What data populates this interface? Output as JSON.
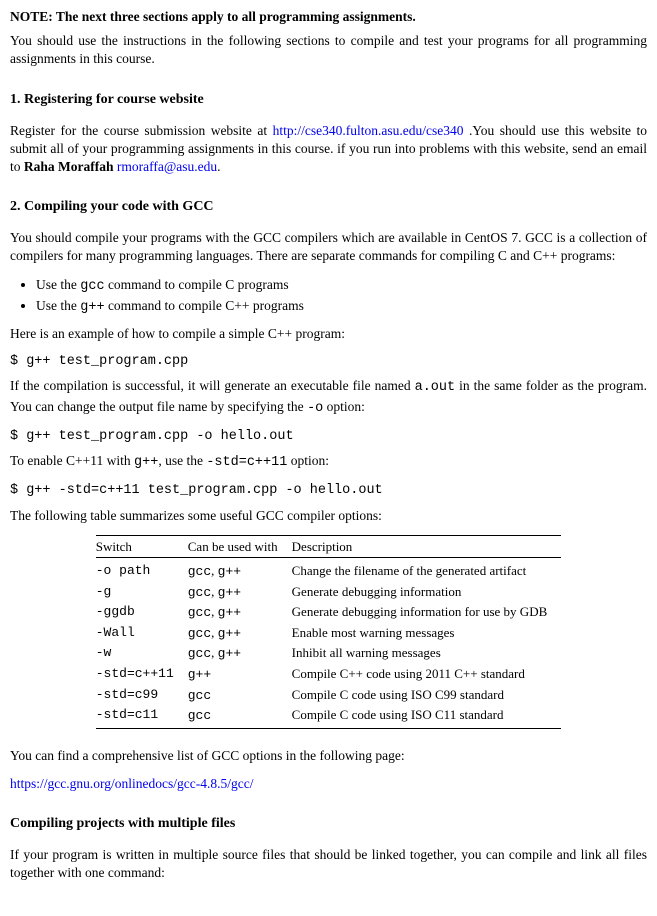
{
  "note": {
    "label": "NOTE: The next three sections apply to all programming assignments.",
    "text": "You should use the instructions in the following sections to compile and test your programs for all programming assignments in this course."
  },
  "section1": {
    "heading": "1.  Registering for course website",
    "p1_a": "Register for the course submission website at ",
    "p1_link1": "http://cse340.fulton.asu.edu/cse340",
    "p1_b": " .You should use this website to submit all of your programming assignments in this course. if you run into problems with this website, send an email to ",
    "p1_bold": "Raha Moraffah",
    "p1_c": " ",
    "p1_link2": "rmoraffa@asu.edu",
    "p1_d": "."
  },
  "section2": {
    "heading": "2.  Compiling your code with GCC",
    "p1": "You should compile your programs with the GCC compilers which are available in CentOS 7. GCC is a collection of compilers for many programming languages. There are separate commands for compiling C and C++ programs:",
    "li1_a": "Use the ",
    "li1_code": "gcc",
    "li1_b": " command to compile C programs",
    "li2_a": "Use the ",
    "li2_code": "g++",
    "li2_b": " command to compile C++ programs",
    "p2": "Here is an example of how to compile a simple C++ program:",
    "cmd1": "$ g++ test_program.cpp",
    "p3_a": "If the compilation is successful, it will generate an executable file named ",
    "p3_code1": "a.out",
    "p3_b": " in the same folder as the program. You can change the output file name by specifying the ",
    "p3_code2": "-o",
    "p3_c": " option:",
    "cmd2": "$ g++ test_program.cpp -o hello.out",
    "p4_a": "To enable C++11 with ",
    "p4_code1": "g++",
    "p4_b": ", use the ",
    "p4_code2": "-std=c++11",
    "p4_c": " option:",
    "cmd3": "$ g++ -std=c++11 test_program.cpp -o hello.out",
    "p5": "The following table summarizes some useful GCC compiler options:",
    "table": {
      "headers": [
        "Switch",
        "Can be used with",
        "Description"
      ],
      "rows": [
        [
          "-o path",
          "gcc, g++",
          "Change the filename of the generated artifact"
        ],
        [
          "-g",
          "gcc, g++",
          "Generate debugging information"
        ],
        [
          "-ggdb",
          "gcc, g++",
          "Generate debugging information for use by GDB"
        ],
        [
          "-Wall",
          "gcc, g++",
          "Enable most warning messages"
        ],
        [
          "-w",
          "gcc, g++",
          "Inhibit all warning messages"
        ],
        [
          "-std=c++11",
          "g++",
          "Compile C++ code using 2011 C++ standard"
        ],
        [
          "-std=c99",
          "gcc",
          "Compile C code using ISO C99 standard"
        ],
        [
          "-std=c11",
          "gcc",
          "Compile C code using ISO C11 standard"
        ]
      ]
    },
    "p6": "You can find a comprehensive list of GCC options in the following page:",
    "link": "https://gcc.gnu.org/onlinedocs/gcc-4.8.5/gcc/"
  },
  "section3": {
    "heading": "Compiling projects with multiple files",
    "p1": "If your program is written in multiple source files that should be linked together, you can compile and link all files together with one command:"
  }
}
